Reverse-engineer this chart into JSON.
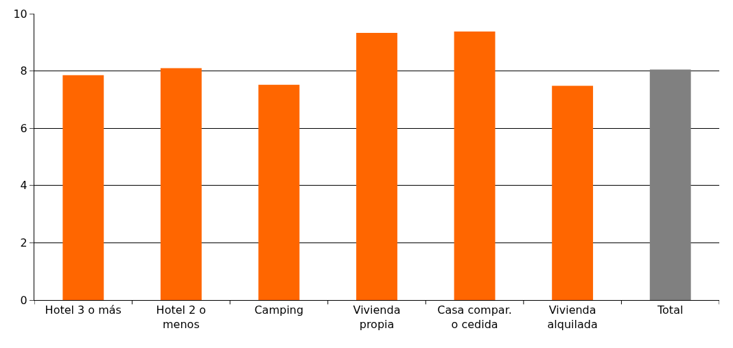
{
  "chart_data": {
    "type": "bar",
    "categories": [
      "Hotel 3 o más",
      "Hotel 2 o menos",
      "Camping",
      "Vivienda propia",
      "Casa compar. o cedida",
      "Vivienda alquilada",
      "Total"
    ],
    "values": [
      7.85,
      8.1,
      7.52,
      9.33,
      9.38,
      7.48,
      8.05
    ],
    "colors": [
      "#ff6600",
      "#ff6600",
      "#ff6600",
      "#ff6600",
      "#ff6600",
      "#ff6600",
      "#808080"
    ],
    "ylim": [
      0,
      10
    ],
    "yticks": [
      0,
      2,
      4,
      6,
      8,
      10
    ],
    "grid": "y"
  }
}
